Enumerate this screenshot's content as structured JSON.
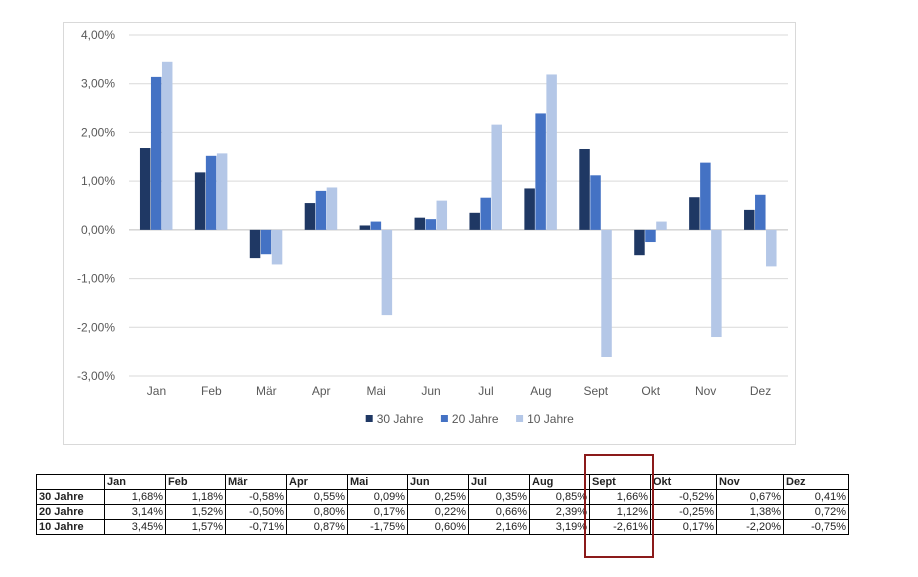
{
  "chart_data": {
    "type": "bar",
    "categories": [
      "Jan",
      "Feb",
      "Mär",
      "Apr",
      "Mai",
      "Jun",
      "Jul",
      "Aug",
      "Sept",
      "Okt",
      "Nov",
      "Dez"
    ],
    "series": [
      {
        "name": "30 Jahre",
        "color": "#1f3864",
        "values": [
          1.68,
          1.18,
          -0.58,
          0.55,
          0.09,
          0.25,
          0.35,
          0.85,
          1.66,
          -0.52,
          0.67,
          0.41
        ]
      },
      {
        "name": "20 Jahre",
        "color": "#4472c4",
        "values": [
          3.14,
          1.52,
          -0.5,
          0.8,
          0.17,
          0.22,
          0.66,
          2.39,
          1.12,
          -0.25,
          1.38,
          0.72
        ]
      },
      {
        "name": "10 Jahre",
        "color": "#b4c7e7",
        "values": [
          3.45,
          1.57,
          -0.71,
          0.87,
          -1.75,
          0.6,
          2.16,
          3.19,
          -2.61,
          0.17,
          -2.2,
          -0.75
        ]
      }
    ],
    "ylim": [
      -3,
      4
    ],
    "yticks": [
      "4,00%",
      "3,00%",
      "2,00%",
      "1,00%",
      "0,00%",
      "-1,00%",
      "-2,00%",
      "-3,00%"
    ],
    "ytick_values": [
      4,
      3,
      2,
      1,
      0,
      -1,
      -2,
      -3
    ],
    "legend_position": "bottom",
    "grid": true
  },
  "table": {
    "headers": [
      "Jan",
      "Feb",
      "Mär",
      "Apr",
      "Mai",
      "Jun",
      "Jul",
      "Aug",
      "Sept",
      "Okt",
      "Nov",
      "Dez"
    ],
    "rows": [
      {
        "label": "30 Jahre",
        "cells": [
          "1,68%",
          "1,18%",
          "-0,58%",
          "0,55%",
          "0,09%",
          "0,25%",
          "0,35%",
          "0,85%",
          "1,66%",
          "-0,52%",
          "0,67%",
          "0,41%"
        ]
      },
      {
        "label": "20 Jahre",
        "cells": [
          "3,14%",
          "1,52%",
          "-0,50%",
          "0,80%",
          "0,17%",
          "0,22%",
          "0,66%",
          "2,39%",
          "1,12%",
          "-0,25%",
          "1,38%",
          "0,72%"
        ]
      },
      {
        "label": "10 Jahre",
        "cells": [
          "3,45%",
          "1,57%",
          "-0,71%",
          "0,87%",
          "-1,75%",
          "0,60%",
          "2,16%",
          "3,19%",
          "-2,61%",
          "0,17%",
          "-2,20%",
          "-0,75%"
        ]
      }
    ],
    "highlight_column": "Sept",
    "highlight_color": "#8b1a1a"
  }
}
